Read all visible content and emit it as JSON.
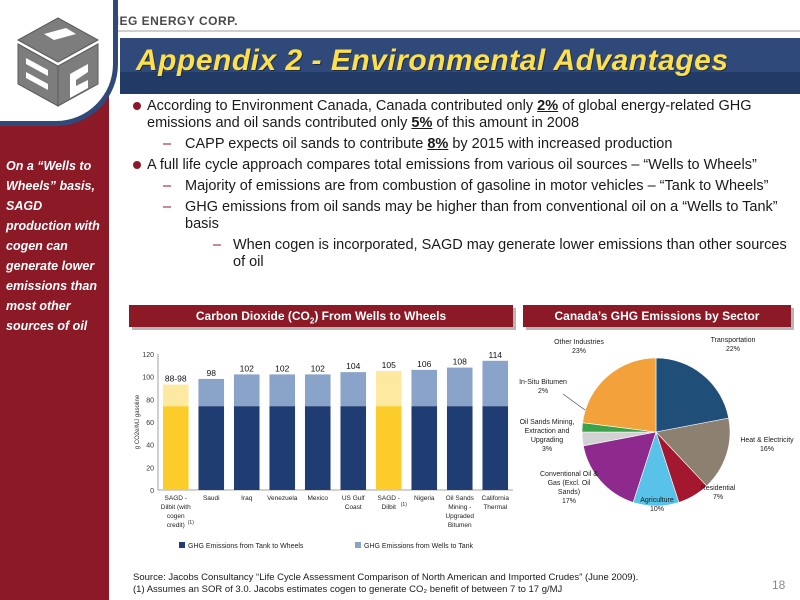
{
  "header": {
    "company": "MEG ENERGY CORP."
  },
  "title": "Appendix 2 - Environmental Advantages",
  "sidebar": {
    "text": "On a “Wells to Wheels” basis, SAGD production with cogen can generate lower emissions than most other sources of oil"
  },
  "bullets": {
    "b1_pre": "According to Environment Canada, Canada contributed only ",
    "b1_pct1": "2%",
    "b1_mid": " of global energy-related GHG emissions and oil sands contributed only ",
    "b1_pct2": "5%",
    "b1_post": " of this amount in 2008",
    "s1_pre": "CAPP expects oil sands to contribute ",
    "s1_pct": "8%",
    "s1_post": " by 2015 with increased production",
    "b2": "A full life cycle approach compares total emissions from various oil sources – “Wells to Wheels”",
    "s2": "Majority of emissions are from combustion of gasoline in motor vehicles – “Tank to Wheels”",
    "s3": "GHG emissions from oil sands may be higher than from conventional oil on a “Wells to Tank” basis",
    "ss1": "When cogen is incorporated, SAGD may generate lower emissions than other sources of oil"
  },
  "panels": {
    "left_title_pre": "Carbon Dioxide (CO",
    "left_title_sub": "2",
    "left_title_post": ") From Wells to Wheels",
    "right_title": "Canada’s GHG Emissions by Sector"
  },
  "source": {
    "line1": "Source: Jacobs Consultancy “Life Cycle Assessment Comparison of North American and Imported Crudes” (June 2009).",
    "line2": "(1) Assumes an SOR of 3.0.  Jacobs estimates cogen to generate CO₂ benefit of between 7 to 17 g/MJ"
  },
  "page_number": "18",
  "colors": {
    "navy": "#223a66",
    "maroon": "#8b1a26",
    "yellow": "#ffe04a",
    "bar_dark": "#1f3d73",
    "bar_light": "#8aa3c8",
    "bar_yellow": "#fccd2a",
    "bar_yellow_light": "#fde9a0"
  },
  "chart_data": [
    {
      "type": "bar",
      "stacked": true,
      "categories": [
        "SAGD - Dilbit (with cogen credit)(1)",
        "Saudi",
        "Iraq",
        "Venezuela",
        "Mexico",
        "US Gulf Coast",
        "SAGD - Dilbit(1)",
        "Nigeria",
        "Oil Sands Mining - Upgraded Bitumen",
        "California Thermal"
      ],
      "category_lines": [
        [
          "SAGD -",
          "Dilbit (with",
          "cogen",
          "credit)"
        ],
        [
          "Saudi"
        ],
        [
          "Iraq"
        ],
        [
          "Venezuela"
        ],
        [
          "Mexico"
        ],
        [
          "US Gulf",
          "Coast"
        ],
        [
          "SAGD -",
          "Dilbit"
        ],
        [
          "Nigeria"
        ],
        [
          "Oil Sands",
          "Mining -",
          "Upgraded",
          "Bitumen"
        ],
        [
          "California",
          "Thermal"
        ]
      ],
      "footnote_marks": [
        "(1)",
        "",
        "",
        "",
        "",
        "",
        "(1)",
        "",
        "",
        ""
      ],
      "series": [
        {
          "name": "GHG Emissions from Tank to Wheels",
          "values": [
            74,
            74,
            74,
            74,
            74,
            74,
            74,
            74,
            74,
            74
          ]
        },
        {
          "name": "GHG Emissions from Wells to Tank",
          "values": [
            19,
            24,
            28,
            28,
            28,
            30,
            31,
            32,
            34,
            40
          ]
        }
      ],
      "data_labels": [
        "88-98",
        "98",
        "102",
        "102",
        "102",
        "104",
        "105",
        "106",
        "108",
        "114"
      ],
      "highlight": [
        true,
        false,
        false,
        false,
        false,
        false,
        true,
        false,
        false,
        false
      ],
      "ylabel": "g CO2e/MJ gasoline",
      "ylim": [
        0,
        120
      ],
      "yticks": [
        0,
        20,
        40,
        60,
        80,
        100,
        120
      ],
      "legend_position": "bottom"
    },
    {
      "type": "pie",
      "slices": [
        {
          "label": "Transportation",
          "value": 22,
          "pct_label": "22%",
          "color": "#1f4e79"
        },
        {
          "label": "Heat & Electricity",
          "value": 16,
          "pct_label": "16%",
          "color": "#8c8070"
        },
        {
          "label": "Residential",
          "value": 7,
          "pct_label": "7%",
          "color": "#a3172f"
        },
        {
          "label": "Agriculture",
          "value": 10,
          "pct_label": "10%",
          "color": "#58c2e8"
        },
        {
          "label": "Conventional Oil & Gas (Excl. Oil Sands)",
          "label_lines": [
            "Conventional Oil &",
            "Gas (Excl. Oil",
            "Sands)"
          ],
          "value": 17,
          "pct_label": "17%",
          "color": "#8e2a8e"
        },
        {
          "label": "Oil Sands Mining, Extraction and Upgrading",
          "label_lines": [
            "Oil Sands Mining,",
            "Extraction and",
            "Upgrading"
          ],
          "value": 3,
          "pct_label": "3%",
          "color": "#d2d2d2"
        },
        {
          "label": "In-Situ Bitumen",
          "value": 2,
          "pct_label": "2%",
          "color": "#3aa34a"
        },
        {
          "label": "Other Industries",
          "value": 23,
          "pct_label": "23%",
          "color": "#f3a13a"
        }
      ]
    }
  ]
}
